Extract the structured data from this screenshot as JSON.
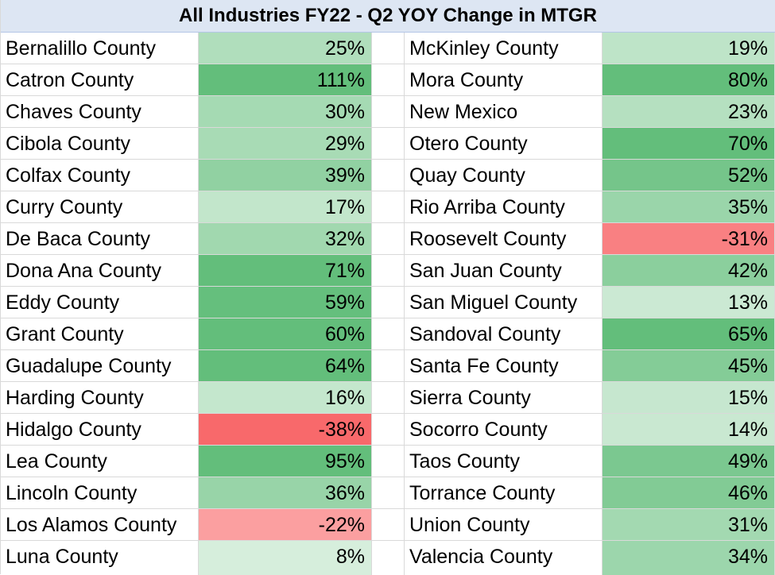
{
  "title": "All Industries FY22 - Q2 YOY Change in MTGR",
  "chart_data": {
    "type": "table",
    "title": "All Industries FY22 - Q2 YOY Change in MTGR",
    "rows_left": [
      {
        "name": "Bernalillo County",
        "value": 25,
        "label": "25%"
      },
      {
        "name": "Catron County",
        "value": 111,
        "label": "111%"
      },
      {
        "name": "Chaves County",
        "value": 30,
        "label": "30%"
      },
      {
        "name": "Cibola County",
        "value": 29,
        "label": "29%"
      },
      {
        "name": "Colfax County",
        "value": 39,
        "label": "39%"
      },
      {
        "name": "Curry County",
        "value": 17,
        "label": "17%"
      },
      {
        "name": "De Baca County",
        "value": 32,
        "label": "32%"
      },
      {
        "name": "Dona Ana County",
        "value": 71,
        "label": "71%"
      },
      {
        "name": "Eddy County",
        "value": 59,
        "label": "59%"
      },
      {
        "name": "Grant County",
        "value": 60,
        "label": "60%"
      },
      {
        "name": "Guadalupe County",
        "value": 64,
        "label": "64%"
      },
      {
        "name": "Harding County",
        "value": 16,
        "label": "16%"
      },
      {
        "name": "Hidalgo County",
        "value": -38,
        "label": "-38%"
      },
      {
        "name": "Lea County",
        "value": 95,
        "label": "95%"
      },
      {
        "name": "Lincoln County",
        "value": 36,
        "label": "36%"
      },
      {
        "name": "Los Alamos County",
        "value": -22,
        "label": "-22%"
      },
      {
        "name": "Luna County",
        "value": 8,
        "label": "8%"
      }
    ],
    "rows_right": [
      {
        "name": "McKinley County",
        "value": 19,
        "label": "19%"
      },
      {
        "name": "Mora County",
        "value": 80,
        "label": "80%"
      },
      {
        "name": "New Mexico",
        "value": 23,
        "label": "23%"
      },
      {
        "name": "Otero County",
        "value": 70,
        "label": "70%"
      },
      {
        "name": "Quay County",
        "value": 52,
        "label": "52%"
      },
      {
        "name": "Rio Arriba County",
        "value": 35,
        "label": "35%"
      },
      {
        "name": "Roosevelt County",
        "value": -31,
        "label": "-31%"
      },
      {
        "name": "San Juan County",
        "value": 42,
        "label": "42%"
      },
      {
        "name": "San Miguel County",
        "value": 13,
        "label": "13%"
      },
      {
        "name": "Sandoval County",
        "value": 65,
        "label": "65%"
      },
      {
        "name": "Santa Fe County",
        "value": 45,
        "label": "45%"
      },
      {
        "name": "Sierra County",
        "value": 15,
        "label": "15%"
      },
      {
        "name": "Socorro County",
        "value": 14,
        "label": "14%"
      },
      {
        "name": "Taos County",
        "value": 49,
        "label": "49%"
      },
      {
        "name": "Torrance County",
        "value": 46,
        "label": "46%"
      },
      {
        "name": "Union County",
        "value": 31,
        "label": "31%"
      },
      {
        "name": "Valencia County",
        "value": 34,
        "label": "34%"
      }
    ],
    "color_scale": {
      "negative": "#f8696b",
      "neutral": "#ffffff",
      "positive": "#63be7b"
    }
  }
}
